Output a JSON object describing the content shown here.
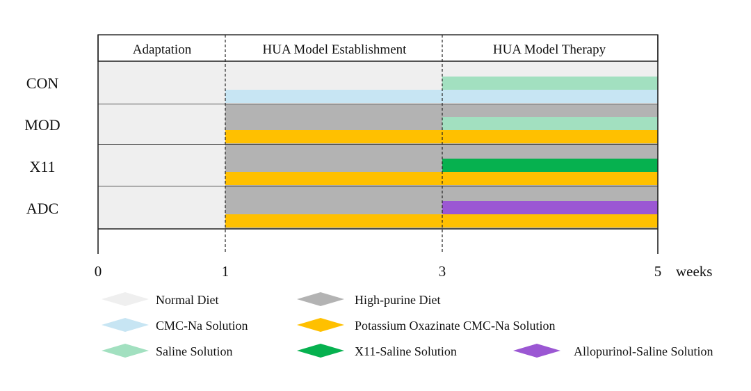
{
  "colors": {
    "normal_diet": "#efefef",
    "high_purine_diet": "#b3b3b3",
    "cmc_na": "#c7e5f3",
    "potassium_oxazinate": "#ffc000",
    "saline": "#a2e0c0",
    "x11_saline": "#06b14f",
    "allopurinol_saline": "#9b57d3"
  },
  "phases": [
    {
      "label": "Adaptation",
      "start": 0,
      "end": 1
    },
    {
      "label": "HUA Model Establishment",
      "start": 1,
      "end": 3
    },
    {
      "label": "HUA Model Therapy",
      "start": 3,
      "end": 5
    }
  ],
  "axis": {
    "ticks": [
      "0",
      "1",
      "3",
      "5"
    ],
    "unit": "weeks",
    "range": [
      0,
      5
    ]
  },
  "groups": [
    {
      "label": "CON",
      "background": [
        {
          "start": 0,
          "end": 5,
          "key": "normal_diet"
        }
      ],
      "upper_bar": [
        {
          "start": 3,
          "end": 5,
          "key": "saline"
        }
      ],
      "lower_bar": [
        {
          "start": 1,
          "end": 5,
          "key": "cmc_na"
        }
      ]
    },
    {
      "label": "MOD",
      "background": [
        {
          "start": 0,
          "end": 1,
          "key": "normal_diet"
        },
        {
          "start": 1,
          "end": 5,
          "key": "high_purine_diet"
        }
      ],
      "upper_bar": [
        {
          "start": 3,
          "end": 5,
          "key": "saline"
        }
      ],
      "lower_bar": [
        {
          "start": 1,
          "end": 5,
          "key": "potassium_oxazinate"
        }
      ]
    },
    {
      "label": "X11",
      "background": [
        {
          "start": 0,
          "end": 1,
          "key": "normal_diet"
        },
        {
          "start": 1,
          "end": 5,
          "key": "high_purine_diet"
        }
      ],
      "upper_bar": [
        {
          "start": 3,
          "end": 5,
          "key": "x11_saline"
        }
      ],
      "lower_bar": [
        {
          "start": 1,
          "end": 5,
          "key": "potassium_oxazinate"
        }
      ]
    },
    {
      "label": "ADC",
      "background": [
        {
          "start": 0,
          "end": 1,
          "key": "normal_diet"
        },
        {
          "start": 1,
          "end": 5,
          "key": "high_purine_diet"
        }
      ],
      "upper_bar": [
        {
          "start": 3,
          "end": 5,
          "key": "allopurinol_saline"
        }
      ],
      "lower_bar": [
        {
          "start": 1,
          "end": 5,
          "key": "potassium_oxazinate"
        }
      ]
    }
  ],
  "legend": [
    {
      "label": "Normal Diet",
      "key": "normal_diet"
    },
    {
      "label": "High-purine Diet",
      "key": "high_purine_diet"
    },
    {
      "label": "CMC-Na Solution",
      "key": "cmc_na"
    },
    {
      "label": "Potassium Oxazinate CMC-Na Solution",
      "key": "potassium_oxazinate"
    },
    {
      "label": "Saline Solution",
      "key": "saline"
    },
    {
      "label": "X11-Saline Solution",
      "key": "x11_saline"
    },
    {
      "label": "Allopurinol-Saline Solution",
      "key": "allopurinol_saline"
    }
  ]
}
